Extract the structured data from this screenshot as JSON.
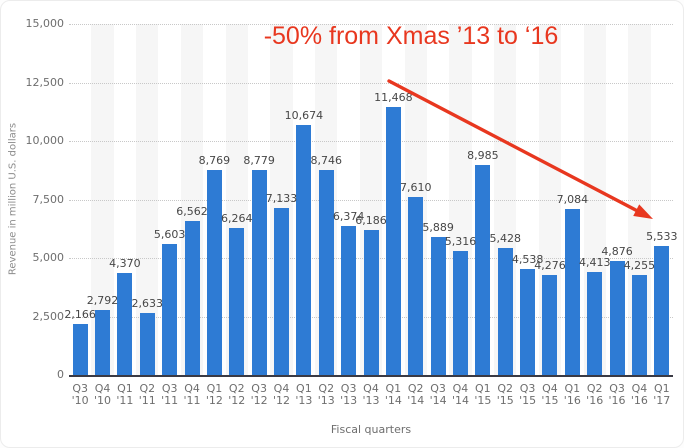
{
  "annotation": {
    "text": "-50% from Xmas ’13 to ‘16",
    "color": "#e8371f"
  },
  "chart_data": {
    "type": "bar",
    "title": "",
    "categories": [
      "Q3 '10",
      "Q4 '10",
      "Q1 '11",
      "Q2 '11",
      "Q3 '11",
      "Q4 '11",
      "Q1 '12",
      "Q2 '12",
      "Q3 '12",
      "Q4 '12",
      "Q1 '13",
      "Q2 '13",
      "Q3 '13",
      "Q4 '13",
      "Q1 '14",
      "Q2 '14",
      "Q3 '14",
      "Q4 '14",
      "Q1 '15",
      "Q2 '15",
      "Q3 '15",
      "Q4 '15",
      "Q1 '16",
      "Q2 '16",
      "Q3 '16",
      "Q4 '16",
      "Q1 '17"
    ],
    "values": [
      2166,
      2792,
      4370,
      2633,
      5603,
      6562,
      8769,
      6264,
      8779,
      7133,
      10674,
      8746,
      6374,
      6186,
      11468,
      7610,
      5889,
      5316,
      8985,
      5428,
      4538,
      4276,
      7084,
      4413,
      4876,
      4255,
      5533
    ],
    "value_labels": [
      "2,166",
      "2,792",
      "4,370",
      "2,633",
      "5,603",
      "6,562",
      "8,769",
      "6,264",
      "8,779",
      "7,133",
      "10,674",
      "8,746",
      "6,374",
      "6,186",
      "11,468",
      "7,610",
      "5,889",
      "5,316",
      "8,985",
      "5,428",
      "4,538",
      "4,276",
      "7,084",
      "4,413",
      "4,876",
      "4,255",
      "5,533"
    ],
    "xlabel": "Fiscal quarters",
    "ylabel": "Revenue in million U.S. dollars",
    "ylim": [
      0,
      15000
    ],
    "ytick_interval": 2500,
    "ytick_labels": [
      "0",
      "2,500",
      "5,000",
      "7,500",
      "10,000",
      "12,500",
      "15,000"
    ],
    "grid": "horizontal dotted",
    "legend": "none",
    "bar_color": "#2e7bd4",
    "stripe_color": "#f6f6f6",
    "annotation_arrow": "diagonal red arrow from the 12,500 gridline above Q1 '14 down to above the Q1 '17 bar"
  }
}
